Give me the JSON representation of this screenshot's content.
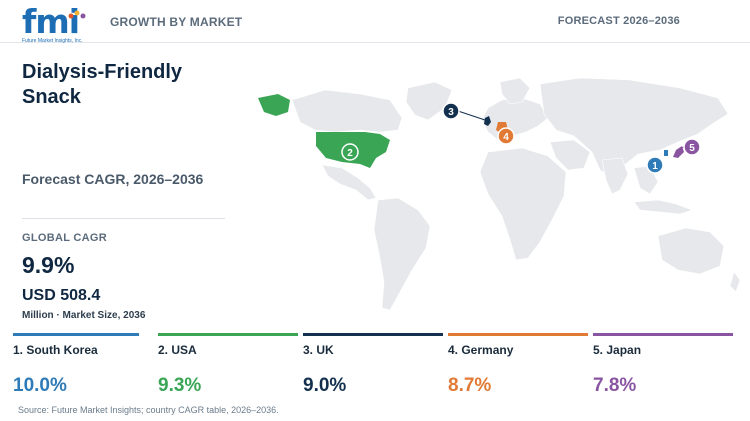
{
  "header": {
    "logo_text": "fmi",
    "logo_sub": "Future Market Insights, Inc.",
    "left": "GROWTH BY MARKET",
    "right": "FORECAST 2026–2036"
  },
  "title_line1": "Dialysis-Friendly",
  "title_line2": "Snack",
  "subtitle": "Forecast CAGR, 2026–2036",
  "global_cagr_label": "GLOBAL CAGR",
  "global_cagr_value": "9.9%",
  "market_size_value": "USD 508.4",
  "market_size_label": "Million · Market Size, 2036",
  "colors": {
    "south_korea": "#2e7bb8",
    "usa": "#3aa655",
    "uk": "#14304f",
    "germany": "#e07a34",
    "japan": "#8a55a0",
    "land": "#e6e8eb"
  },
  "countries": [
    {
      "name": "1. South Korea",
      "value": "10.0%",
      "color": "#2e7bb8",
      "marker": "1"
    },
    {
      "name": "2. USA",
      "value": "9.3%",
      "color": "#3aa655",
      "marker": "2"
    },
    {
      "name": "3. UK",
      "value": "9.0%",
      "color": "#14304f",
      "marker": "3"
    },
    {
      "name": "4. Germany",
      "value": "8.7%",
      "color": "#e07a34",
      "marker": "4"
    },
    {
      "name": "5. Japan",
      "value": "7.8%",
      "color": "#8a55a0",
      "marker": "5"
    }
  ],
  "source": "Source: Future Market Insights; country CAGR table, 2026–2036."
}
